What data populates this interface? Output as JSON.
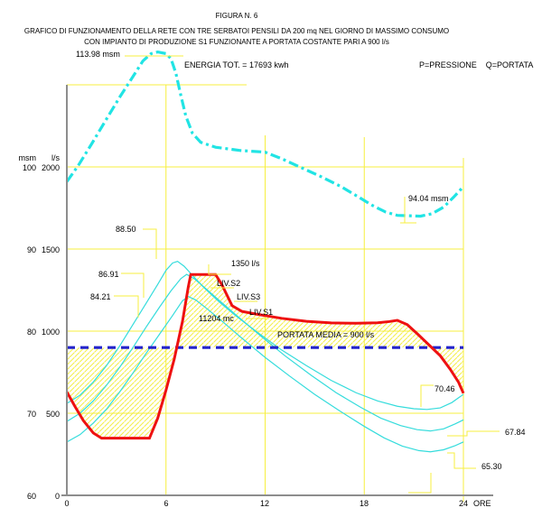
{
  "figure": {
    "caption": "FIGURA N. 6",
    "title_line1": "GRAFICO DI FUNZIONAMENTO DELLA RETE CON TRE SERBATOI PENSILI DA 200 mq NEL GIORNO DI MASSIMO CONSUMO",
    "title_line2": "CON IMPIANTO DI PRODUZIONE S1 FUNZIONANTE A PORTATA COSTANTE PARI A 900 l/s",
    "energy_total": "ENERGIA TOT. = 17693 kwh",
    "legend": "P=PRESSIONE    Q=PORTATA"
  },
  "axes": {
    "left_col1_header": "msm",
    "left_col2_header": "l/s",
    "msm_ticks": [
      "100",
      "90",
      "80",
      "70",
      "60"
    ],
    "ls_ticks": [
      "2000",
      "1500",
      "1000",
      "500",
      "0"
    ],
    "x_ticks": [
      "0",
      "6",
      "12",
      "18",
      "24"
    ],
    "x_unit": "ORE"
  },
  "annotations": {
    "pressure_max": "113.98 msm",
    "pressure_min": "94.04 msm",
    "s2_max": "88.50",
    "s3_max": "86.91",
    "s1_max": "84.21",
    "q_max": "1350 l/s",
    "liv_s2": "LIV.S2",
    "liv_s3": "LIV.S3",
    "liv_s1": "LIV.S1",
    "volume": "11204 mc",
    "mean_flow": "PORTATA MEDIA = 900 l/s",
    "s2_min": "70.46",
    "s3_min": "67.84",
    "s1_min": "65.30"
  },
  "colors": {
    "grid": "#f7ef3f",
    "hatch": "#f4ee48",
    "pressure": "#21e4e4",
    "levels": "#35dcdc",
    "flow": "#ee1111",
    "mean": "#2323cc",
    "axis": "#8d8d8d"
  },
  "chart_data": {
    "type": "line",
    "title": "GRAFICO DI FUNZIONAMENTO DELLA RETE CON TRE SERBATOI PENSILI DA 200 mq NEL GIORNO DI MASSIMO CONSUMO",
    "xlabel": "ORE",
    "x_range": [
      0,
      24
    ],
    "y_axis_msm": {
      "unit": "msm",
      "range": [
        60,
        110
      ],
      "ticks": [
        100,
        90,
        80,
        70,
        60
      ]
    },
    "y_axis_ls": {
      "unit": "l/s",
      "range": [
        0,
        2500
      ],
      "ticks": [
        2000,
        1500,
        1000,
        500,
        0
      ]
    },
    "grid": true,
    "mean_flow_ls": 900,
    "energy_total_kwh": 17693,
    "volume_mc": 11204,
    "series": [
      {
        "id": "S2",
        "name": "LIV.S2 livello serbatoio S2",
        "unit": "msm",
        "style": "solid",
        "width": 1.2,
        "color": "#35dcdc",
        "max": 88.5,
        "min": 70.46,
        "points": [
          [
            0,
            71.2
          ],
          [
            0.8,
            72.2
          ],
          [
            1.6,
            73.8
          ],
          [
            2.4,
            75.8
          ],
          [
            3.2,
            78.2
          ],
          [
            4,
            80.8
          ],
          [
            4.8,
            83.4
          ],
          [
            5.5,
            85.7
          ],
          [
            6,
            87.4
          ],
          [
            6.4,
            88.3
          ],
          [
            6.7,
            88.5
          ],
          [
            7.1,
            87.9
          ],
          [
            7.6,
            86.8
          ],
          [
            8.3,
            85.3
          ],
          [
            9.2,
            83.6
          ],
          [
            10.2,
            81.9
          ],
          [
            11.5,
            79.9
          ],
          [
            13,
            77.7
          ],
          [
            14.5,
            75.8
          ],
          [
            16,
            74
          ],
          [
            17.5,
            72.5
          ],
          [
            18.8,
            71.5
          ],
          [
            20,
            70.85
          ],
          [
            21,
            70.55
          ],
          [
            21.8,
            70.46
          ],
          [
            22.6,
            70.65
          ],
          [
            23.3,
            71.3
          ],
          [
            24,
            72.3
          ]
        ]
      },
      {
        "id": "S3",
        "name": "LIV.S3 livello serbatoio S3",
        "unit": "msm",
        "style": "solid",
        "width": 1.2,
        "color": "#35dcdc",
        "max": 86.91,
        "min": 67.84,
        "points": [
          [
            0,
            69
          ],
          [
            0.8,
            70
          ],
          [
            1.6,
            71.5
          ],
          [
            2.4,
            73.4
          ],
          [
            3.2,
            75.6
          ],
          [
            4,
            78
          ],
          [
            4.8,
            80.5
          ],
          [
            5.6,
            82.9
          ],
          [
            6.3,
            84.9
          ],
          [
            6.9,
            86.4
          ],
          [
            7.25,
            86.91
          ],
          [
            7.7,
            86.4
          ],
          [
            8.4,
            85.2
          ],
          [
            9.3,
            83.6
          ],
          [
            10.4,
            81.7
          ],
          [
            11.8,
            79.3
          ],
          [
            13.2,
            77
          ],
          [
            14.8,
            74.6
          ],
          [
            16.3,
            72.5
          ],
          [
            17.8,
            70.7
          ],
          [
            19,
            69.4
          ],
          [
            20.2,
            68.5
          ],
          [
            21.2,
            68
          ],
          [
            22,
            67.84
          ],
          [
            22.8,
            68.1
          ],
          [
            23.5,
            68.7
          ],
          [
            24,
            69.2
          ]
        ]
      },
      {
        "id": "S1",
        "name": "LIV.S1 livello serbatoio S1",
        "unit": "msm",
        "style": "solid",
        "width": 1.2,
        "color": "#35dcdc",
        "max": 84.21,
        "min": 65.3,
        "points": [
          [
            0,
            66.5
          ],
          [
            0.8,
            67.4
          ],
          [
            1.6,
            68.8
          ],
          [
            2.4,
            70.5
          ],
          [
            3.2,
            72.6
          ],
          [
            4,
            74.9
          ],
          [
            4.8,
            77.3
          ],
          [
            5.6,
            79.6
          ],
          [
            6.4,
            81.9
          ],
          [
            7,
            83.7
          ],
          [
            7.35,
            84.21
          ],
          [
            7.8,
            83.8
          ],
          [
            8.5,
            82.7
          ],
          [
            9.4,
            81.2
          ],
          [
            10.5,
            79.3
          ],
          [
            12,
            76.8
          ],
          [
            13.5,
            74.5
          ],
          [
            15,
            72.3
          ],
          [
            16.5,
            70.3
          ],
          [
            18,
            68.4
          ],
          [
            19.2,
            67
          ],
          [
            20.3,
            66
          ],
          [
            21.3,
            65.45
          ],
          [
            22,
            65.3
          ],
          [
            22.8,
            65.55
          ],
          [
            23.5,
            66.05
          ],
          [
            24,
            66.5
          ]
        ]
      },
      {
        "id": "QM",
        "name": "PORTATA MEDIA = 900 l/s",
        "unit": "ls",
        "style": "dashed",
        "width": 3.2,
        "color": "#2323cc",
        "points": [
          [
            0,
            900
          ],
          [
            24,
            900
          ]
        ]
      },
      {
        "id": "Q",
        "name": "Q portata",
        "unit": "ls",
        "style": "solid",
        "width": 3,
        "color": "#ee1111",
        "max": 1350,
        "points": [
          [
            0,
            630
          ],
          [
            0.5,
            540
          ],
          [
            1,
            455
          ],
          [
            1.6,
            380
          ],
          [
            2.1,
            348
          ],
          [
            5,
            348
          ],
          [
            5.5,
            470
          ],
          [
            6,
            640
          ],
          [
            6.5,
            830
          ],
          [
            7,
            1060
          ],
          [
            7.35,
            1270
          ],
          [
            7.5,
            1345
          ],
          [
            9,
            1345
          ],
          [
            9.4,
            1280
          ],
          [
            10,
            1155
          ],
          [
            10.6,
            1120
          ],
          [
            11.5,
            1103
          ],
          [
            13,
            1078
          ],
          [
            14.5,
            1060
          ],
          [
            16,
            1050
          ],
          [
            17.5,
            1048
          ],
          [
            18.8,
            1051
          ],
          [
            19.5,
            1058
          ],
          [
            20,
            1066
          ],
          [
            20.6,
            1040
          ],
          [
            21.2,
            985
          ],
          [
            22,
            908
          ],
          [
            22.6,
            850
          ],
          [
            23.2,
            768
          ],
          [
            23.7,
            690
          ],
          [
            24,
            622
          ]
        ]
      },
      {
        "id": "P",
        "name": "P pressione",
        "unit": "msm",
        "style": "dashdot",
        "width": 3.2,
        "color": "#21e4e4",
        "max": 113.98,
        "min": 94.04,
        "points": [
          [
            0,
            98.2
          ],
          [
            0.7,
            100.2
          ],
          [
            1.5,
            102.8
          ],
          [
            2.3,
            105.5
          ],
          [
            3.2,
            108.5
          ],
          [
            4,
            111
          ],
          [
            4.6,
            112.9
          ],
          [
            5.1,
            113.8
          ],
          [
            5.5,
            114
          ],
          [
            6,
            113.8
          ],
          [
            6.3,
            113.2
          ],
          [
            6.6,
            111.4
          ],
          [
            6.9,
            108.7
          ],
          [
            7.2,
            106.2
          ],
          [
            7.6,
            104.1
          ],
          [
            8.1,
            103
          ],
          [
            9,
            102.4
          ],
          [
            10.5,
            102
          ],
          [
            12,
            101.8
          ],
          [
            13,
            101
          ],
          [
            14.2,
            99.9
          ],
          [
            15.4,
            98.8
          ],
          [
            16.6,
            97.6
          ],
          [
            17.6,
            96.4
          ],
          [
            18.5,
            95.3
          ],
          [
            19.3,
            94.5
          ],
          [
            20,
            94.1
          ],
          [
            21.4,
            94
          ],
          [
            22.1,
            94.3
          ],
          [
            22.8,
            95.1
          ],
          [
            23.4,
            96.3
          ],
          [
            24,
            97.6
          ]
        ]
      }
    ]
  }
}
